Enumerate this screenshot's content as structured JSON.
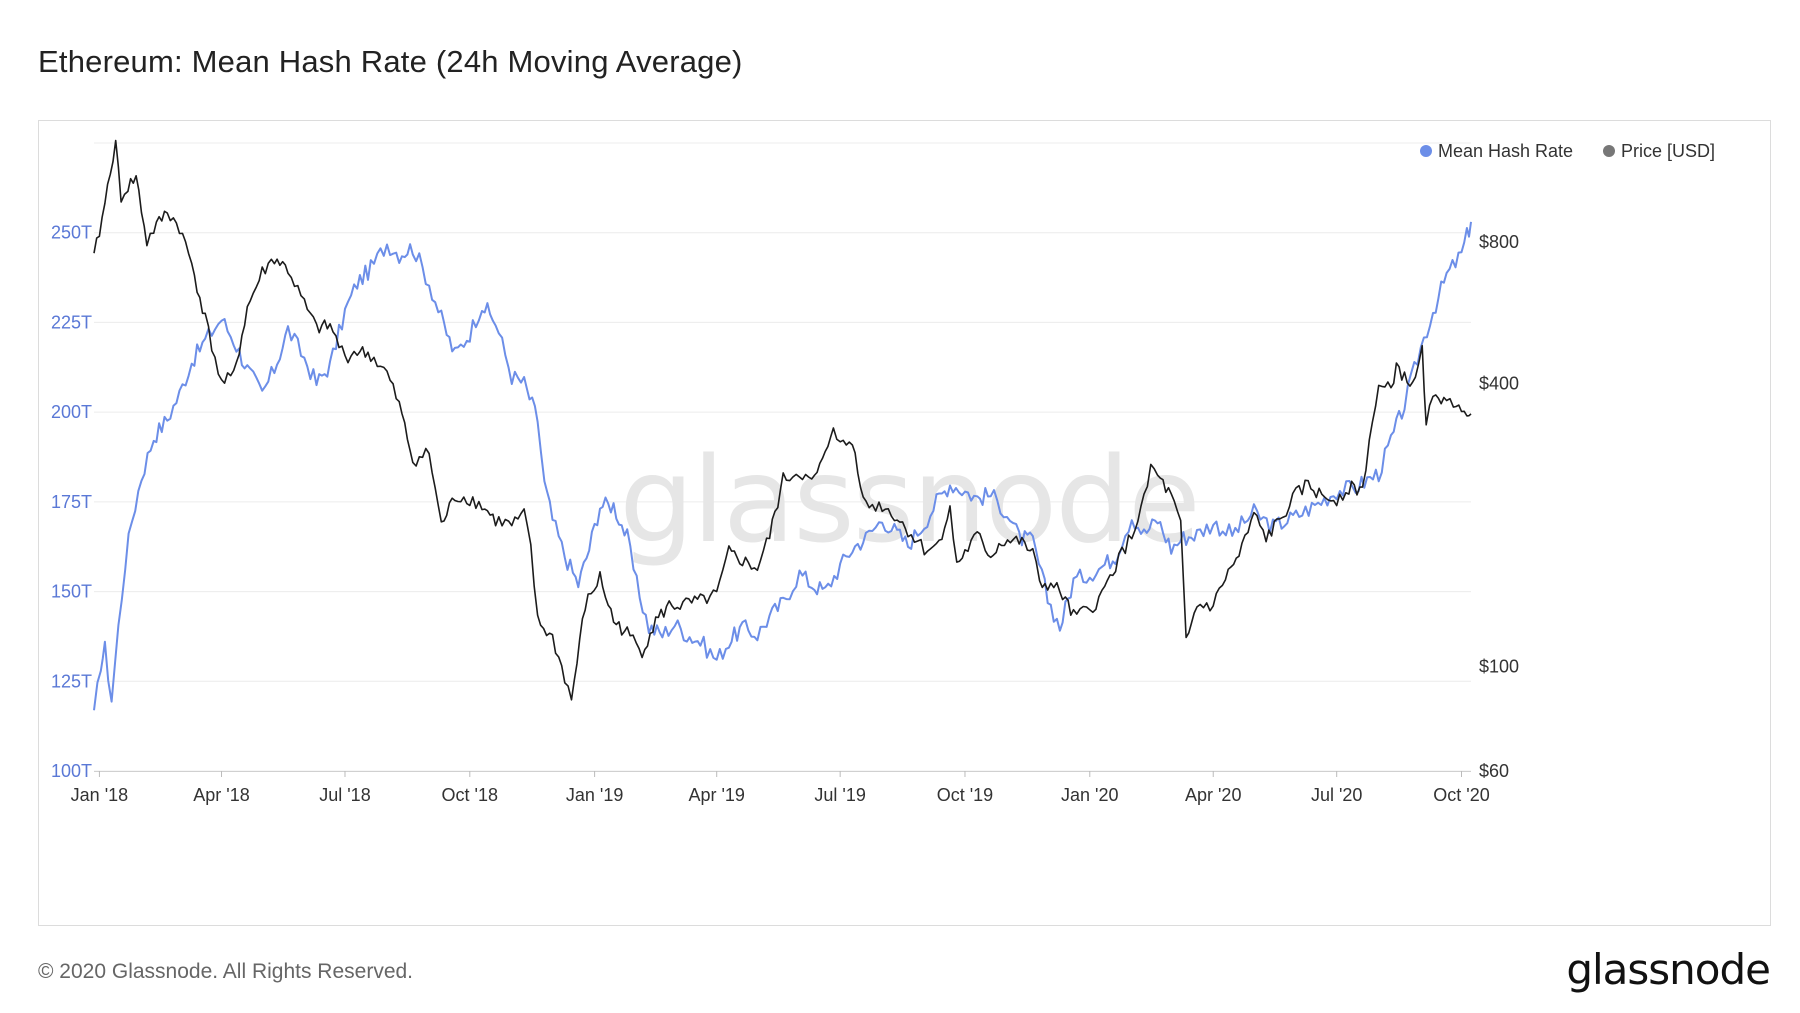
{
  "title": "Ethereum: Mean Hash Rate (24h Moving Average)",
  "footer": "© 2020 Glassnode. All Rights Reserved.",
  "brand": "glassnode",
  "colors": {
    "hash_rate": "#6c8ee8",
    "price": "#1c1c1c",
    "grid": "#ececec",
    "axis_left": "#5a78d6"
  },
  "chart_data": {
    "type": "line",
    "watermark": "glassnode",
    "legend": {
      "position": "top-right",
      "items": [
        "Mean Hash Rate",
        "Price [USD]"
      ]
    },
    "x_axis": {
      "range": [
        "2017-12-28",
        "2020-10-08"
      ],
      "ticks": [
        {
          "date": "2018-01-01",
          "label": "Jan '18"
        },
        {
          "date": "2018-04-01",
          "label": "Apr '18"
        },
        {
          "date": "2018-07-01",
          "label": "Jul '18"
        },
        {
          "date": "2018-10-01",
          "label": "Oct '18"
        },
        {
          "date": "2019-01-01",
          "label": "Jan '19"
        },
        {
          "date": "2019-04-01",
          "label": "Apr '19"
        },
        {
          "date": "2019-07-01",
          "label": "Jul '19"
        },
        {
          "date": "2019-10-01",
          "label": "Oct '19"
        },
        {
          "date": "2020-01-01",
          "label": "Jan '20"
        },
        {
          "date": "2020-04-01",
          "label": "Apr '20"
        },
        {
          "date": "2020-07-01",
          "label": "Jul '20"
        },
        {
          "date": "2020-10-01",
          "label": "Oct '20"
        }
      ]
    },
    "y_left": {
      "range": [
        100,
        275
      ],
      "unit": "TH/s",
      "ticks": [
        {
          "value": 100,
          "label": "100T"
        },
        {
          "value": 125,
          "label": "125T"
        },
        {
          "value": 150,
          "label": "150T"
        },
        {
          "value": 175,
          "label": "175T"
        },
        {
          "value": 200,
          "label": "200T"
        },
        {
          "value": 225,
          "label": "225T"
        },
        {
          "value": 250,
          "label": "250T"
        }
      ]
    },
    "y_right": {
      "scale": "log",
      "range": [
        60,
        1300
      ],
      "ticks": [
        {
          "value": 60,
          "label": "$60"
        },
        {
          "value": 100,
          "label": "$100"
        },
        {
          "value": 400,
          "label": "$400"
        },
        {
          "value": 800,
          "label": "$800"
        }
      ]
    },
    "grid": true,
    "series": [
      {
        "name": "Mean Hash Rate",
        "axis": "left",
        "points": [
          [
            "2017-12-28",
            115
          ],
          [
            "2018-01-02",
            130
          ],
          [
            "2018-01-05",
            134
          ],
          [
            "2018-01-10",
            120
          ],
          [
            "2018-01-15",
            140
          ],
          [
            "2018-01-20",
            158
          ],
          [
            "2018-01-25",
            170
          ],
          [
            "2018-02-01",
            182
          ],
          [
            "2018-02-10",
            193
          ],
          [
            "2018-02-20",
            198
          ],
          [
            "2018-03-01",
            205
          ],
          [
            "2018-03-10",
            214
          ],
          [
            "2018-03-20",
            220
          ],
          [
            "2018-04-01",
            226
          ],
          [
            "2018-04-10",
            220
          ],
          [
            "2018-04-20",
            212
          ],
          [
            "2018-05-01",
            205
          ],
          [
            "2018-05-10",
            212
          ],
          [
            "2018-05-20",
            223
          ],
          [
            "2018-06-01",
            215
          ],
          [
            "2018-06-10",
            208
          ],
          [
            "2018-06-20",
            213
          ],
          [
            "2018-07-01",
            228
          ],
          [
            "2018-07-10",
            236
          ],
          [
            "2018-07-20",
            240
          ],
          [
            "2018-08-01",
            247
          ],
          [
            "2018-08-10",
            244
          ],
          [
            "2018-08-20",
            246
          ],
          [
            "2018-09-01",
            236
          ],
          [
            "2018-09-10",
            226
          ],
          [
            "2018-09-20",
            216
          ],
          [
            "2018-10-01",
            222
          ],
          [
            "2018-10-10",
            230
          ],
          [
            "2018-10-20",
            225
          ],
          [
            "2018-11-01",
            210
          ],
          [
            "2018-11-10",
            208
          ],
          [
            "2018-11-20",
            198
          ],
          [
            "2018-11-25",
            180
          ],
          [
            "2018-12-01",
            170
          ],
          [
            "2018-12-10",
            160
          ],
          [
            "2018-12-20",
            152
          ],
          [
            "2018-12-28",
            162
          ],
          [
            "2019-01-05",
            174
          ],
          [
            "2019-01-15",
            174
          ],
          [
            "2019-01-25",
            165
          ],
          [
            "2019-02-01",
            152
          ],
          [
            "2019-02-10",
            140
          ],
          [
            "2019-02-20",
            138
          ],
          [
            "2019-03-01",
            141
          ],
          [
            "2019-03-10",
            138
          ],
          [
            "2019-03-20",
            136
          ],
          [
            "2019-04-01",
            131
          ],
          [
            "2019-04-10",
            136
          ],
          [
            "2019-04-20",
            140
          ],
          [
            "2019-05-01",
            138
          ],
          [
            "2019-05-10",
            143
          ],
          [
            "2019-05-20",
            147
          ],
          [
            "2019-06-01",
            155
          ],
          [
            "2019-06-10",
            152
          ],
          [
            "2019-06-20",
            150
          ],
          [
            "2019-07-01",
            157
          ],
          [
            "2019-07-10",
            162
          ],
          [
            "2019-07-20",
            165
          ],
          [
            "2019-08-01",
            170
          ],
          [
            "2019-08-10",
            167
          ],
          [
            "2019-08-20",
            163
          ],
          [
            "2019-09-01",
            169
          ],
          [
            "2019-09-10",
            175
          ],
          [
            "2019-09-20",
            180
          ],
          [
            "2019-10-01",
            178
          ],
          [
            "2019-10-10",
            176
          ],
          [
            "2019-10-20",
            177
          ],
          [
            "2019-11-01",
            172
          ],
          [
            "2019-11-10",
            165
          ],
          [
            "2019-11-20",
            164
          ],
          [
            "2019-12-01",
            148
          ],
          [
            "2019-12-10",
            140
          ],
          [
            "2019-12-20",
            153
          ],
          [
            "2020-01-01",
            155
          ],
          [
            "2020-01-10",
            157
          ],
          [
            "2020-01-20",
            160
          ],
          [
            "2020-02-01",
            171
          ],
          [
            "2020-02-10",
            166
          ],
          [
            "2020-02-20",
            170
          ],
          [
            "2020-03-01",
            162
          ],
          [
            "2020-03-10",
            165
          ],
          [
            "2020-03-20",
            166
          ],
          [
            "2020-04-01",
            169
          ],
          [
            "2020-04-15",
            166
          ],
          [
            "2020-05-01",
            172
          ],
          [
            "2020-05-15",
            168
          ],
          [
            "2020-06-01",
            171
          ],
          [
            "2020-06-15",
            174
          ],
          [
            "2020-07-01",
            178
          ],
          [
            "2020-07-15",
            179
          ],
          [
            "2020-08-01",
            183
          ],
          [
            "2020-08-10",
            192
          ],
          [
            "2020-08-20",
            202
          ],
          [
            "2020-09-01",
            218
          ],
          [
            "2020-09-10",
            228
          ],
          [
            "2020-09-20",
            238
          ],
          [
            "2020-10-01",
            244
          ],
          [
            "2020-10-05",
            249
          ],
          [
            "2020-10-08",
            253
          ]
        ]
      },
      {
        "name": "Price [USD]",
        "axis": "right",
        "points": [
          [
            "2017-12-28",
            740
          ],
          [
            "2018-01-05",
            960
          ],
          [
            "2018-01-09",
            1150
          ],
          [
            "2018-01-13",
            1280
          ],
          [
            "2018-01-17",
            1000
          ],
          [
            "2018-01-22",
            1050
          ],
          [
            "2018-01-28",
            1100
          ],
          [
            "2018-02-05",
            800
          ],
          [
            "2018-02-10",
            850
          ],
          [
            "2018-02-20",
            930
          ],
          [
            "2018-03-01",
            860
          ],
          [
            "2018-03-10",
            720
          ],
          [
            "2018-03-20",
            550
          ],
          [
            "2018-04-01",
            400
          ],
          [
            "2018-04-10",
            415
          ],
          [
            "2018-04-20",
            580
          ],
          [
            "2018-05-01",
            690
          ],
          [
            "2018-05-10",
            740
          ],
          [
            "2018-05-20",
            700
          ],
          [
            "2018-06-01",
            590
          ],
          [
            "2018-06-10",
            525
          ],
          [
            "2018-06-20",
            530
          ],
          [
            "2018-07-01",
            455
          ],
          [
            "2018-07-10",
            470
          ],
          [
            "2018-07-20",
            460
          ],
          [
            "2018-08-01",
            420
          ],
          [
            "2018-08-10",
            360
          ],
          [
            "2018-08-20",
            275
          ],
          [
            "2018-09-01",
            285
          ],
          [
            "2018-09-10",
            200
          ],
          [
            "2018-09-20",
            230
          ],
          [
            "2018-10-01",
            228
          ],
          [
            "2018-10-10",
            220
          ],
          [
            "2018-10-20",
            205
          ],
          [
            "2018-11-01",
            200
          ],
          [
            "2018-11-10",
            210
          ],
          [
            "2018-11-15",
            180
          ],
          [
            "2018-11-20",
            125
          ],
          [
            "2018-12-01",
            115
          ],
          [
            "2018-12-10",
            95
          ],
          [
            "2018-12-15",
            85
          ],
          [
            "2018-12-25",
            135
          ],
          [
            "2019-01-05",
            155
          ],
          [
            "2019-01-15",
            125
          ],
          [
            "2019-01-25",
            118
          ],
          [
            "2019-02-05",
            108
          ],
          [
            "2019-02-15",
            125
          ],
          [
            "2019-02-25",
            135
          ],
          [
            "2019-03-05",
            135
          ],
          [
            "2019-03-20",
            138
          ],
          [
            "2019-04-01",
            142
          ],
          [
            "2019-04-10",
            175
          ],
          [
            "2019-04-20",
            168
          ],
          [
            "2019-05-01",
            162
          ],
          [
            "2019-05-10",
            190
          ],
          [
            "2019-05-20",
            250
          ],
          [
            "2019-06-01",
            260
          ],
          [
            "2019-06-10",
            245
          ],
          [
            "2019-06-20",
            280
          ],
          [
            "2019-06-26",
            330
          ],
          [
            "2019-07-01",
            295
          ],
          [
            "2019-07-10",
            300
          ],
          [
            "2019-07-20",
            220
          ],
          [
            "2019-08-01",
            220
          ],
          [
            "2019-08-10",
            210
          ],
          [
            "2019-08-20",
            195
          ],
          [
            "2019-09-01",
            178
          ],
          [
            "2019-09-10",
            180
          ],
          [
            "2019-09-20",
            215
          ],
          [
            "2019-09-25",
            165
          ],
          [
            "2019-10-01",
            175
          ],
          [
            "2019-10-10",
            190
          ],
          [
            "2019-10-20",
            172
          ],
          [
            "2019-10-28",
            185
          ],
          [
            "2019-11-10",
            185
          ],
          [
            "2019-11-20",
            175
          ],
          [
            "2019-11-25",
            150
          ],
          [
            "2019-12-01",
            150
          ],
          [
            "2019-12-10",
            145
          ],
          [
            "2019-12-20",
            128
          ],
          [
            "2020-01-01",
            132
          ],
          [
            "2020-01-10",
            142
          ],
          [
            "2020-01-20",
            165
          ],
          [
            "2020-02-01",
            190
          ],
          [
            "2020-02-10",
            225
          ],
          [
            "2020-02-15",
            265
          ],
          [
            "2020-02-20",
            255
          ],
          [
            "2020-03-01",
            230
          ],
          [
            "2020-03-08",
            200
          ],
          [
            "2020-03-12",
            112
          ],
          [
            "2020-03-20",
            135
          ],
          [
            "2020-04-01",
            135
          ],
          [
            "2020-04-10",
            155
          ],
          [
            "2020-04-20",
            172
          ],
          [
            "2020-05-01",
            210
          ],
          [
            "2020-05-10",
            188
          ],
          [
            "2020-05-20",
            205
          ],
          [
            "2020-06-01",
            232
          ],
          [
            "2020-06-10",
            245
          ],
          [
            "2020-06-20",
            230
          ],
          [
            "2020-07-01",
            228
          ],
          [
            "2020-07-10",
            240
          ],
          [
            "2020-07-20",
            238
          ],
          [
            "2020-07-25",
            305
          ],
          [
            "2020-08-01",
            390
          ],
          [
            "2020-08-10",
            390
          ],
          [
            "2020-08-14",
            440
          ],
          [
            "2020-08-20",
            410
          ],
          [
            "2020-08-28",
            400
          ],
          [
            "2020-09-02",
            475
          ],
          [
            "2020-09-05",
            335
          ],
          [
            "2020-09-10",
            365
          ],
          [
            "2020-09-20",
            380
          ],
          [
            "2020-09-25",
            345
          ],
          [
            "2020-10-01",
            358
          ],
          [
            "2020-10-05",
            350
          ],
          [
            "2020-10-08",
            345
          ]
        ]
      }
    ]
  }
}
